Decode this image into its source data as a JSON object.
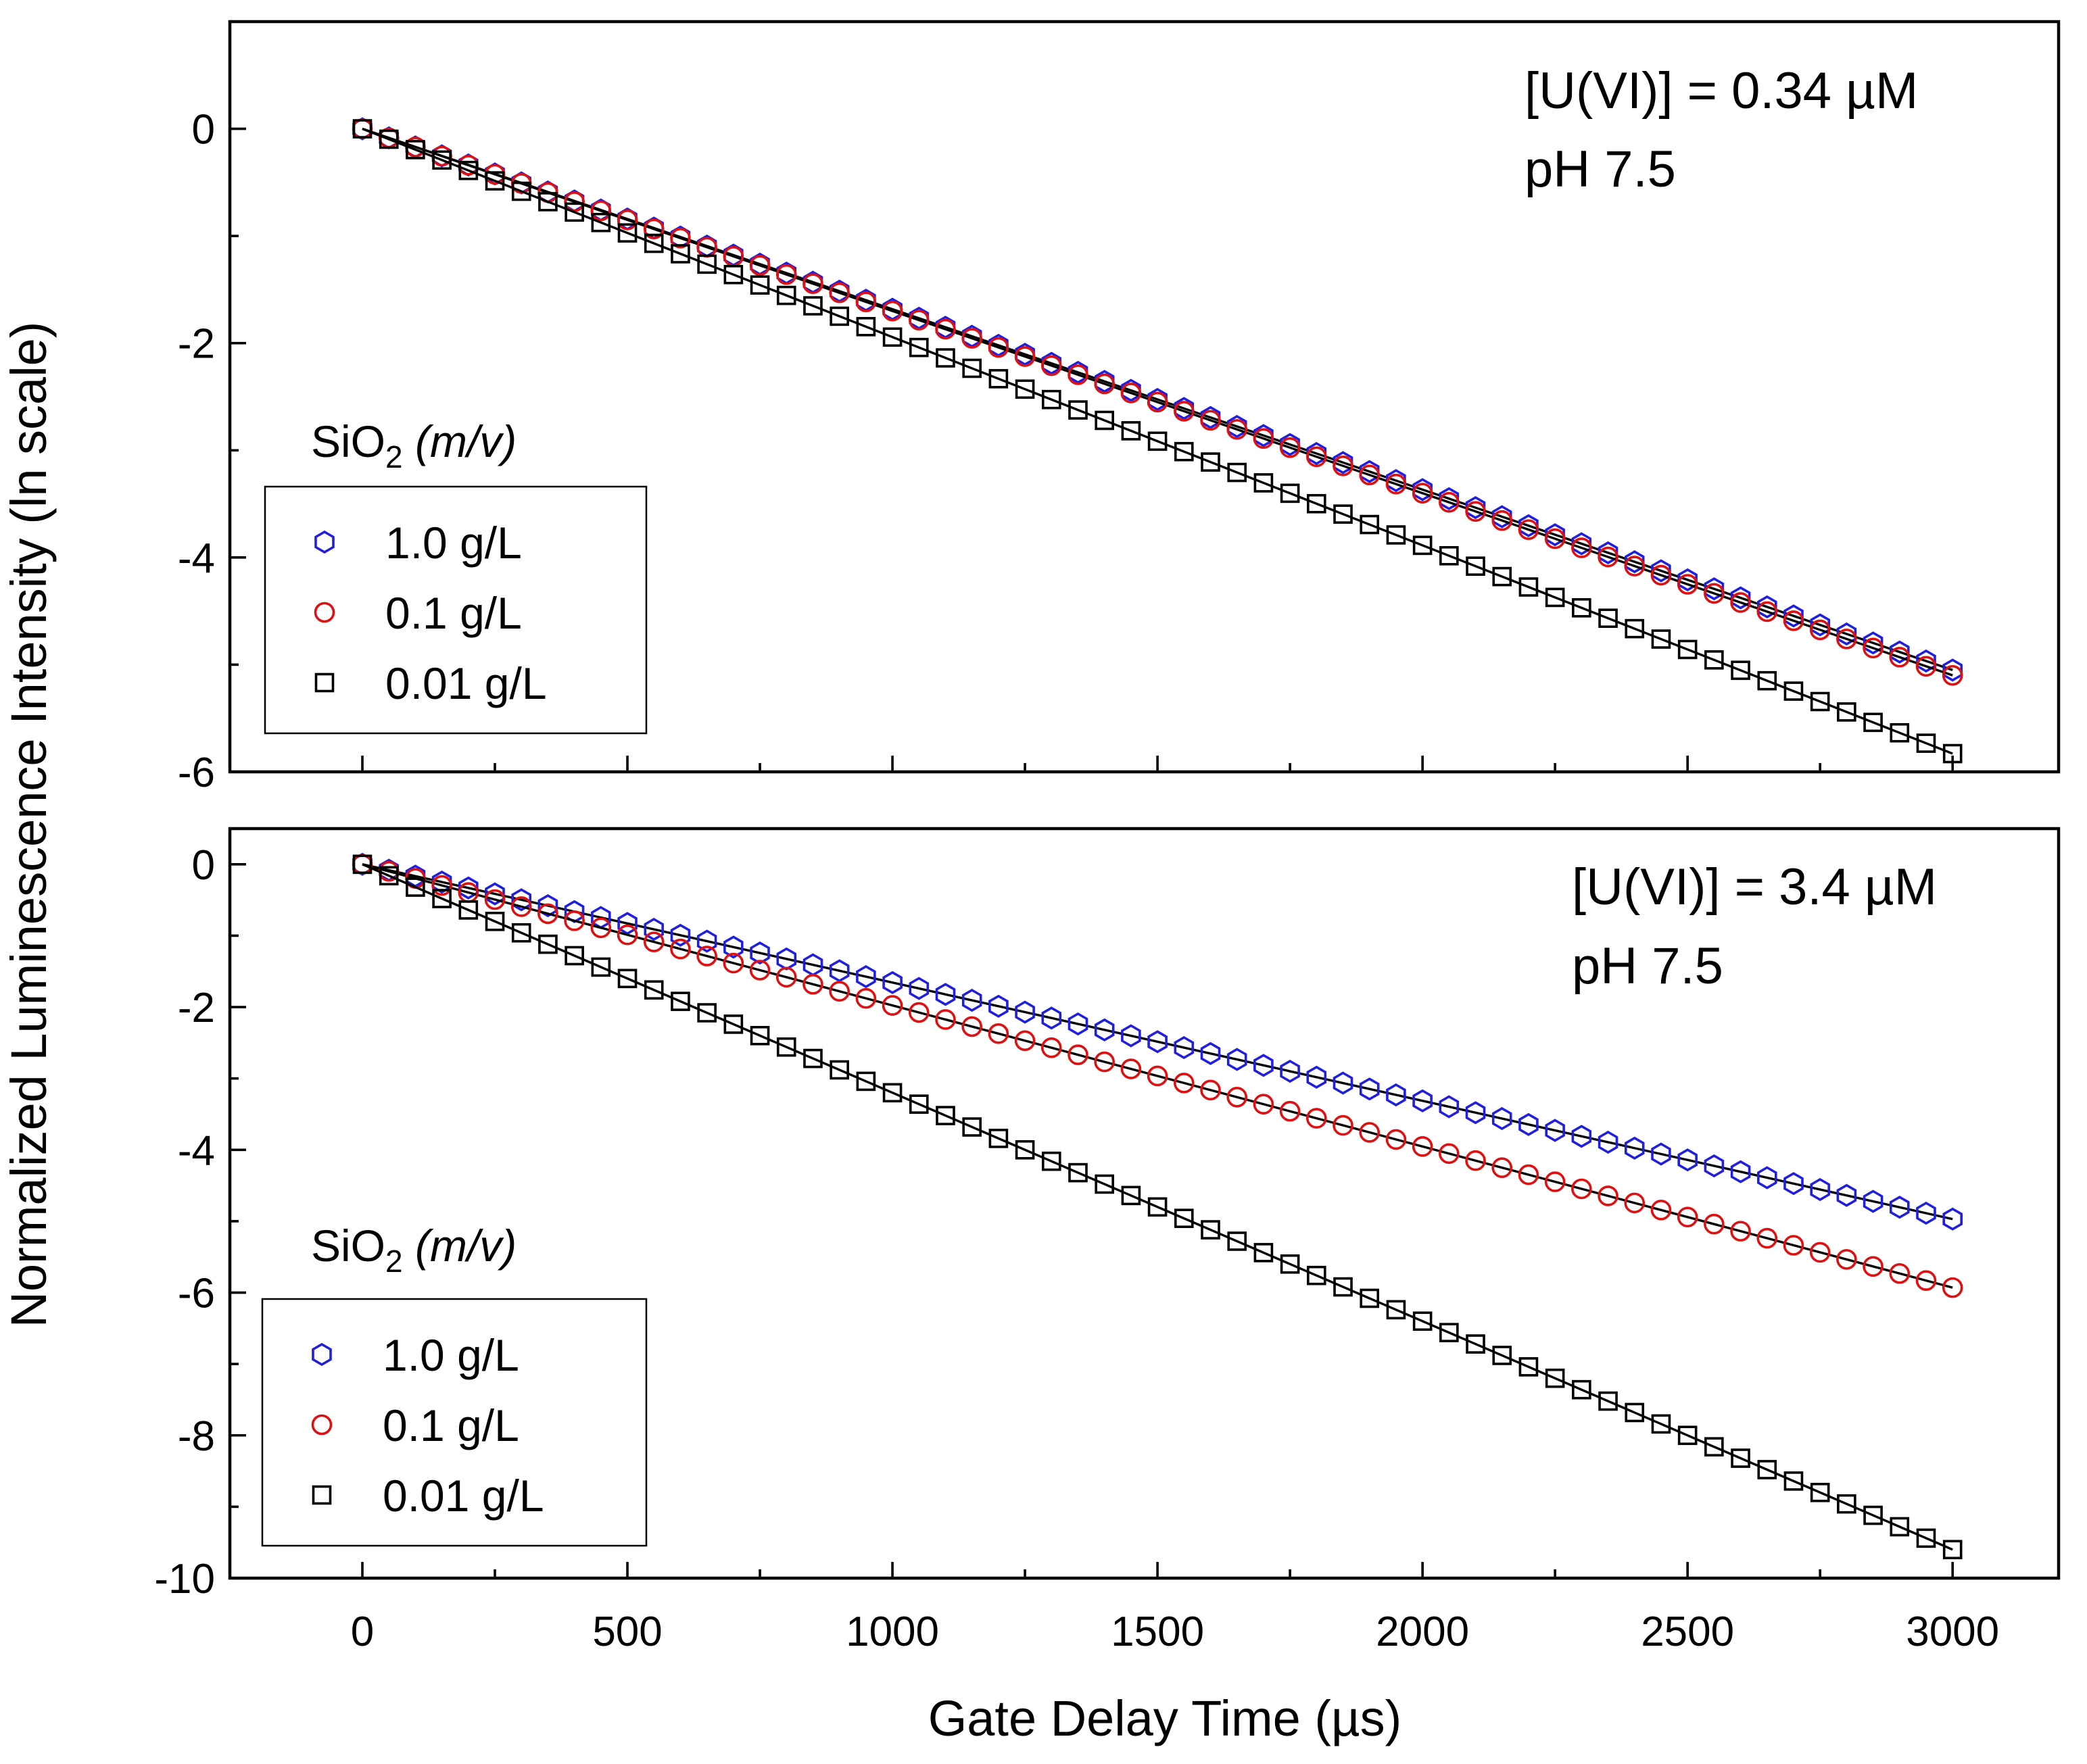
{
  "figure": {
    "ylabel": "Normalized Luminescence Intensity (ln scale)",
    "xlabel": "Gate Delay Time (µs)",
    "xlim": [
      -250,
      3200
    ],
    "xticks": [
      0,
      500,
      1000,
      1500,
      2000,
      2500,
      3000
    ]
  },
  "chart_data": [
    {
      "type": "scatter",
      "panel": "top",
      "annotation": [
        "[U(VI)] = 0.34 µM",
        "pH 7.5"
      ],
      "legend_title": "SiO₂ (m/v)",
      "legend_title_parts": {
        "base": "SiO",
        "sub": "2",
        "italic": "(m/v)"
      },
      "ylim": [
        -6,
        1
      ],
      "yticks": [
        0,
        -2,
        -4,
        -6
      ],
      "x_start": 0,
      "x_step": 50,
      "x_end": 3000,
      "fit_line": true,
      "series": [
        {
          "name": "1.0 g/L",
          "marker": "hexagon",
          "color": "#1f1fdd",
          "slope_per_us": -0.001683,
          "x0": 0,
          "y0": 0,
          "x1": 3000,
          "y1": -5.05
        },
        {
          "name": "0.1 g/L",
          "marker": "circle",
          "color": "#dd1111",
          "slope_per_us": -0.0017,
          "x0": 0,
          "y0": 0,
          "x1": 3000,
          "y1": -5.1
        },
        {
          "name": "0.01 g/L",
          "marker": "square",
          "color": "#000000",
          "slope_per_us": -0.001943,
          "x0": 0,
          "y0": 0,
          "x1": 3000,
          "y1": -5.83
        }
      ]
    },
    {
      "type": "scatter",
      "panel": "bottom",
      "annotation": [
        "[U(VI)] = 3.4 µM",
        "pH 7.5"
      ],
      "legend_title": "SiO₂ (m/v)",
      "legend_title_parts": {
        "base": "SiO",
        "sub": "2",
        "italic": "(m/v)"
      },
      "ylim": [
        -10,
        0.5
      ],
      "yticks": [
        0,
        -2,
        -4,
        -6,
        -8,
        -10
      ],
      "x_start": 0,
      "x_step": 50,
      "x_end": 3000,
      "fit_line": true,
      "series": [
        {
          "name": "1.0 g/L",
          "marker": "hexagon",
          "color": "#1f1fdd",
          "x0": 0,
          "y0": 0,
          "x1": 3000,
          "y1": -4.97,
          "points_y": [
            -0.12,
            -0.25,
            -0.37,
            -0.48,
            -0.6,
            -0.71,
            -0.82,
            -0.93,
            -1.04,
            -1.14,
            -1.24,
            -1.35,
            -1.45,
            -1.55,
            -1.64,
            -1.74,
            -1.84,
            -1.93,
            -2.02,
            -2.12,
            -2.21,
            -2.3,
            -2.39,
            -2.48,
            -2.56,
            -2.65,
            -2.74,
            -2.82,
            -2.91,
            -2.99,
            -3.07,
            -3.15,
            -3.24,
            -3.32,
            -3.4,
            -3.47,
            -3.55,
            -3.63,
            -3.71,
            -3.79,
            -3.86,
            -3.94,
            -4.01,
            -4.09,
            -4.16,
            -4.23,
            -4.3,
            -4.38,
            -4.45,
            -4.52,
            -4.59,
            -4.66,
            -4.72,
            -4.79,
            -4.86,
            -4.92,
            -4.97,
            -4.97,
            -4.97,
            -4.97
          ]
        },
        {
          "name": "0.1 g/L",
          "marker": "circle",
          "color": "#dd1111",
          "x0": 0,
          "y0": 0,
          "x1": 3000,
          "y1": -5.93
        },
        {
          "name": "0.01 g/L",
          "marker": "square",
          "color": "#000000",
          "x0": 0,
          "y0": 0,
          "x1": 3000,
          "y1": -9.6
        }
      ]
    }
  ]
}
